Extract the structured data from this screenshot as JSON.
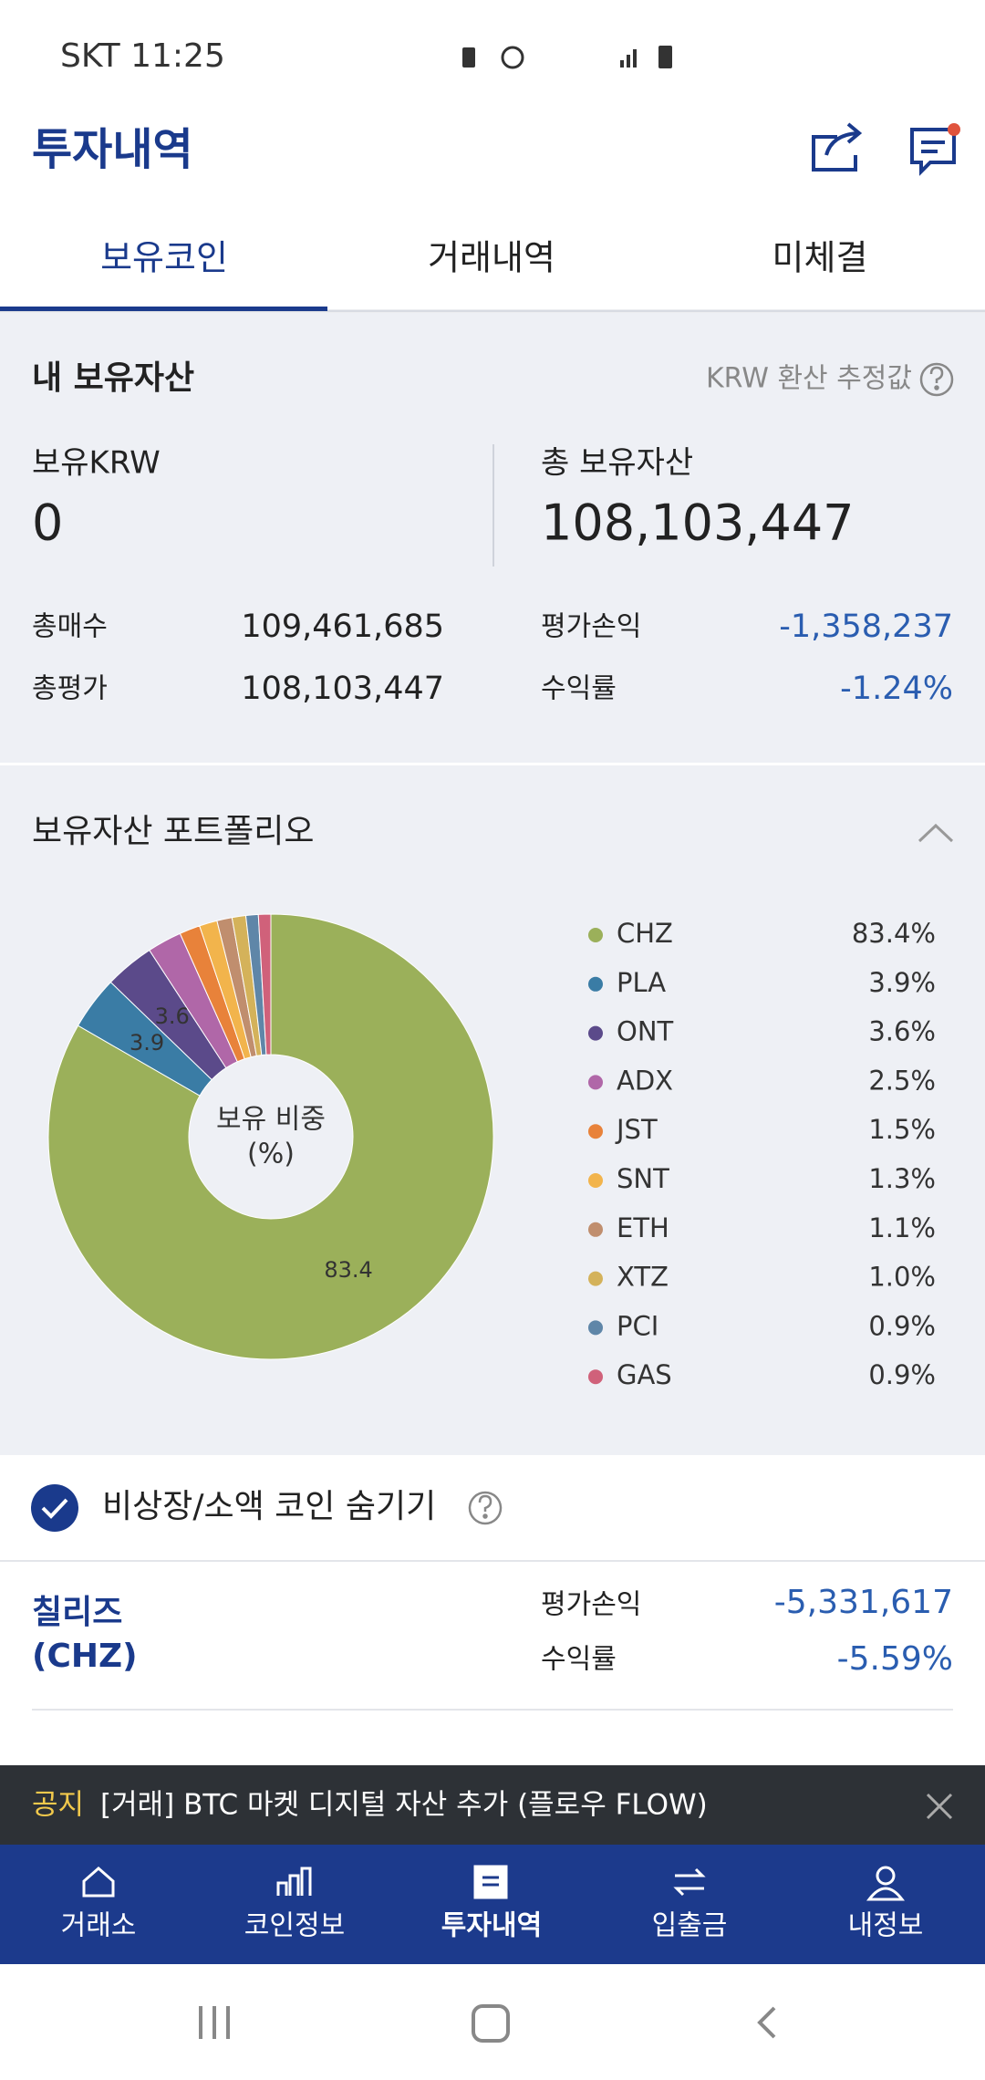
{
  "status": {
    "carrier_time": "SKT 11:25"
  },
  "header": {
    "title": "투자내역"
  },
  "tabs": [
    "보유코인",
    "거래내역",
    "미체결"
  ],
  "summary": {
    "title": "내 보유자산",
    "note": "KRW 환산 추정값",
    "krw_label": "보유KRW",
    "krw_value": "0",
    "total_label": "총 보유자산",
    "total_value": "108,103,447",
    "left_rows": [
      {
        "label": "총매수",
        "value": "109,461,685"
      },
      {
        "label": "총평가",
        "value": "108,103,447"
      }
    ],
    "right_rows": [
      {
        "label": "평가손익",
        "value": "-1,358,237"
      },
      {
        "label": "수익률",
        "value": "-1.24%"
      }
    ]
  },
  "portfolio": {
    "title": "보유자산 포트폴리오"
  },
  "chart_data": {
    "type": "pie",
    "donut": true,
    "center_label": [
      "보유 비중",
      "(%)"
    ],
    "categories": [
      "CHZ",
      "PLA",
      "ONT",
      "ADX",
      "JST",
      "SNT",
      "ETH",
      "XTZ",
      "PCI",
      "GAS"
    ],
    "values": [
      83.4,
      3.9,
      3.6,
      2.5,
      1.5,
      1.3,
      1.1,
      1.0,
      0.9,
      0.9
    ],
    "value_labels": [
      "83.4%",
      "3.9%",
      "3.6%",
      "2.5%",
      "1.5%",
      "1.3%",
      "1.1%",
      "1.0%",
      "0.9%",
      "0.9%"
    ],
    "colors": [
      "#9bb05a",
      "#3a7ca5",
      "#5b4a8a",
      "#b067a8",
      "#e8823a",
      "#f2b44c",
      "#c08e6e",
      "#d4b25a",
      "#5f86a8",
      "#d0617a"
    ]
  },
  "filter": {
    "label": "비상장/소액 코인 숨기기"
  },
  "holding": {
    "name": "칠리즈",
    "symbol": "(CHZ)",
    "pl_label": "평가손익",
    "pl_value": "-5,331,617",
    "rate_label": "수익률",
    "rate_value": "-5.59%"
  },
  "notice": {
    "tag": "공지",
    "text": "[거래] BTC 마켓 디지털 자산 추가 (플로우 FLOW)"
  },
  "nav": [
    "거래소",
    "코인정보",
    "투자내역",
    "입출금",
    "내정보"
  ]
}
